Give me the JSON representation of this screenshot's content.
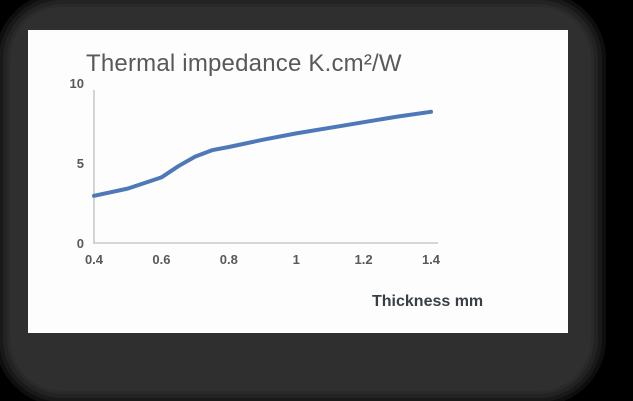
{
  "window": {
    "background_color": "#000000",
    "frame_color": "#2f2f2f",
    "card_color": "#fdfdfd"
  },
  "chart_data": {
    "type": "line",
    "title": "Thermal impedance  K.cm²/W",
    "xlabel": "Thickness mm",
    "ylabel": "",
    "x": [
      0.4,
      0.5,
      0.6,
      0.65,
      0.7,
      0.75,
      0.8,
      0.9,
      1.0,
      1.1,
      1.2,
      1.3,
      1.4
    ],
    "series": [
      {
        "name": "Thermal impedance",
        "color": "#4e79b8",
        "values": [
          2.95,
          3.4,
          4.1,
          4.8,
          5.4,
          5.8,
          6.0,
          6.45,
          6.85,
          7.2,
          7.55,
          7.9,
          8.2
        ]
      }
    ],
    "xticks": [
      "0.4",
      "0.6",
      "0.8",
      "1",
      "1.2",
      "1.4"
    ],
    "yticks": [
      "0",
      "5",
      "10"
    ],
    "xlim": [
      0.4,
      1.4
    ],
    "ylim": [
      0,
      10
    ],
    "grid": false,
    "legend": "none",
    "axis_color": "#c9c9c9",
    "tick_color": "#595959",
    "title_color": "#58595b",
    "xlabel_color": "#3a3f47"
  }
}
